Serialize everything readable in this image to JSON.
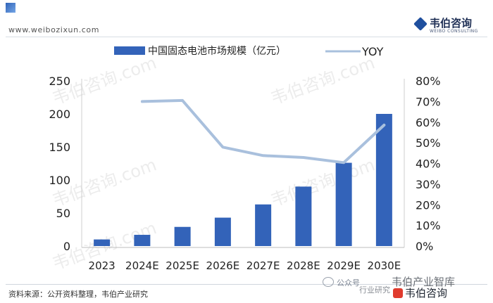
{
  "header": {
    "site_url": "www.weibozixun.com",
    "logo_text": "韦伯咨询",
    "logo_subtext": "WEIBO CONSULTING"
  },
  "footer": {
    "source": "资料来源：公开资料整理，韦伯产业研究",
    "social_public_label": "公众号",
    "social_mid_label": "行业研究",
    "social_top_label": "韦伯产业智库",
    "social_brand_label": "韦伯咨询"
  },
  "watermark_text": "韦伯咨询.com",
  "colors": {
    "bar": "#3363b9",
    "line": "#a9c0dd",
    "axis_text": "#222222"
  },
  "chart_data": {
    "type": "bar",
    "categories": [
      "2023",
      "2024E",
      "2025E",
      "2026E",
      "2027E",
      "2028E",
      "2029E",
      "2030E"
    ],
    "series": [
      {
        "name": "中国固态电池市场规模（亿元）",
        "type": "bar",
        "axis": "left",
        "values": [
          10,
          17,
          29,
          43,
          63,
          90,
          126,
          200
        ]
      },
      {
        "name": "YOY",
        "type": "line",
        "axis": "right",
        "values": [
          null,
          70,
          70.5,
          47.9,
          43.8,
          42.9,
          40.4,
          58.6
        ]
      }
    ],
    "y_left": {
      "min": 0,
      "max": 250,
      "ticks": [
        0,
        50,
        100,
        150,
        200,
        250
      ]
    },
    "y_right": {
      "min": 0,
      "max": 80,
      "ticks": [
        "0%",
        "10%",
        "20%",
        "30%",
        "40%",
        "50%",
        "60%",
        "70%",
        "80%"
      ]
    },
    "legend_position": "top",
    "grid": false
  }
}
